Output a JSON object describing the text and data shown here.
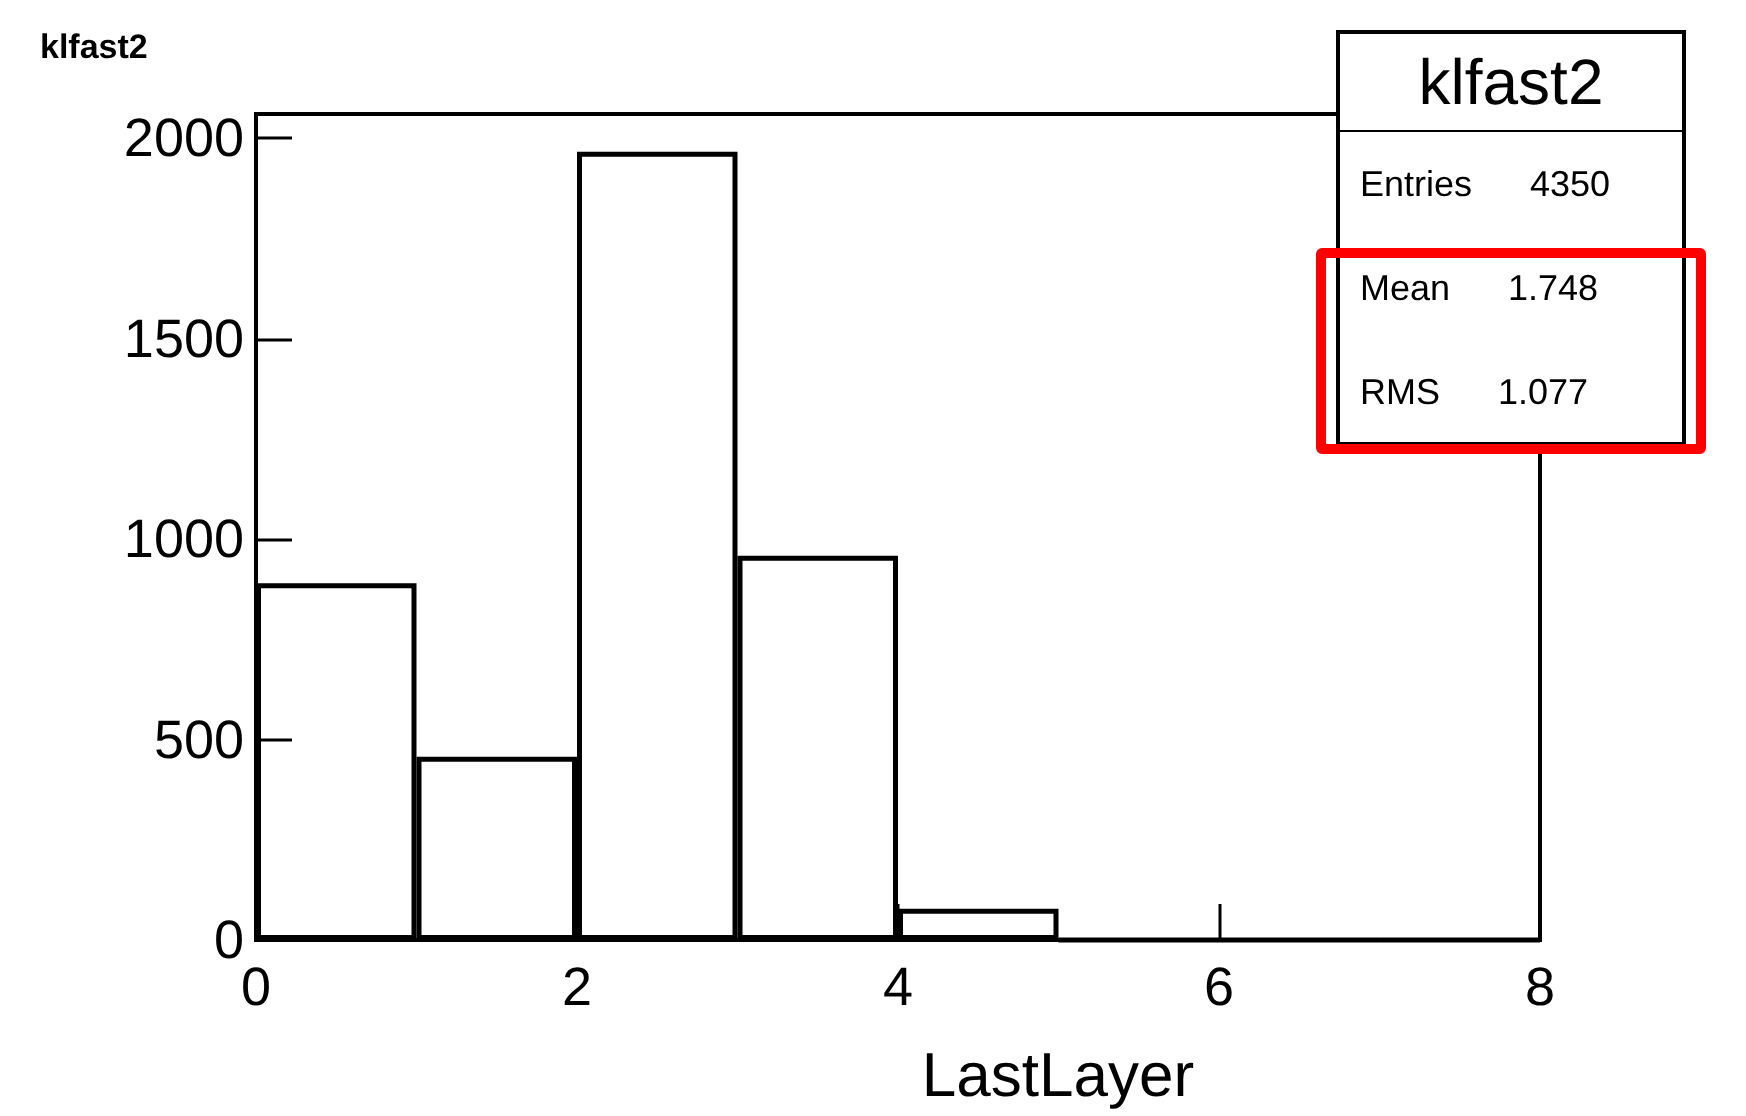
{
  "chart_data": {
    "type": "histogram",
    "title": "klfast2",
    "xlabel": "LastLayer",
    "bins": [
      0,
      1,
      2,
      3,
      4,
      5,
      6,
      7,
      8
    ],
    "values": [
      890,
      457,
      1966,
      958,
      78,
      0,
      0,
      0
    ],
    "color": "#000000",
    "xlim": [
      0,
      8
    ],
    "xticks": [
      0,
      2,
      4,
      6,
      8
    ],
    "ylim": [
      0,
      2060
    ],
    "yticks": [
      0,
      500,
      1000,
      1500,
      2000
    ],
    "grid": false,
    "annotations": [
      "klfast2",
      "Entries 4350",
      "Mean 1.748",
      "RMS 1.077"
    ]
  }
}
